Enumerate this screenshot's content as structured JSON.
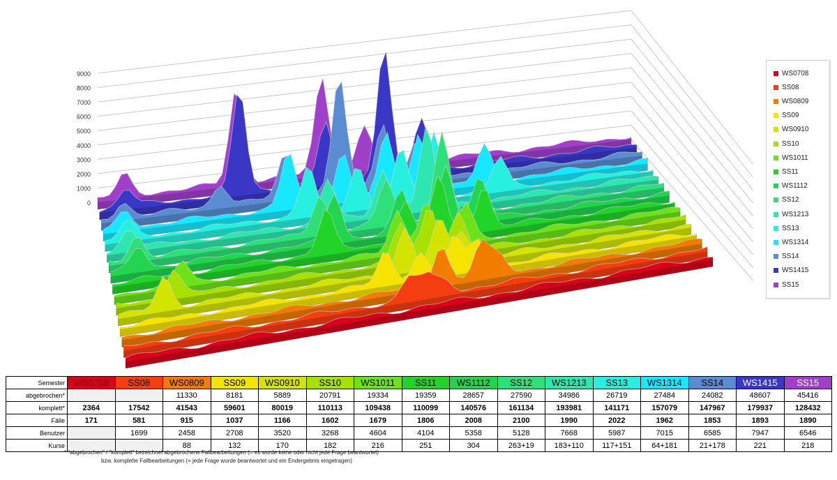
{
  "chart_data": {
    "type": "area",
    "subtype": "3d-stacked-ribbons",
    "y_ticks": [
      "9000",
      "8000",
      "7000",
      "6000",
      "5000",
      "4000",
      "3000",
      "2000",
      "1000",
      "0"
    ],
    "ylim": [
      0,
      9000
    ],
    "grid": true,
    "legend_position": "right",
    "series": [
      {
        "name": "WS0708",
        "color": "#d9001b",
        "peaks": []
      },
      {
        "name": "SS08",
        "color": "#f53d12",
        "peaks": [
          [
            0.49,
            1500
          ],
          [
            0.52,
            1400
          ],
          [
            0.55,
            900
          ]
        ]
      },
      {
        "name": "WS0809",
        "color": "#f07c00",
        "peaks": [
          [
            0.55,
            2700
          ],
          [
            0.62,
            2400
          ],
          [
            0.65,
            1300
          ]
        ]
      },
      {
        "name": "SS09",
        "color": "#f5e400",
        "peaks": [
          [
            0.46,
            2200
          ],
          [
            0.52,
            1800
          ],
          [
            0.58,
            2500
          ],
          [
            0.62,
            2000
          ]
        ]
      },
      {
        "name": "WS0910",
        "color": "#d2e400",
        "peaks": [
          [
            0.08,
            2200
          ],
          [
            0.5,
            2800
          ],
          [
            0.56,
            3200
          ],
          [
            0.6,
            2200
          ]
        ]
      },
      {
        "name": "SS10",
        "color": "#a8e000",
        "peaks": [
          [
            0.1,
            1900
          ],
          [
            0.5,
            2600
          ],
          [
            0.55,
            3500
          ],
          [
            0.6,
            2800
          ]
        ]
      },
      {
        "name": "WS1011",
        "color": "#6de21a",
        "peaks": [
          [
            0.12,
            1600
          ],
          [
            0.5,
            2800
          ],
          [
            0.55,
            3300
          ],
          [
            0.62,
            2600
          ]
        ]
      },
      {
        "name": "SS11",
        "color": "#22d42a",
        "peaks": [
          [
            0.38,
            3000
          ],
          [
            0.52,
            2800
          ],
          [
            0.58,
            4200
          ],
          [
            0.66,
            3000
          ]
        ]
      },
      {
        "name": "WS1112",
        "color": "#22d44e",
        "peaks": [
          [
            0.05,
            1600
          ],
          [
            0.4,
            3400
          ],
          [
            0.52,
            2800
          ],
          [
            0.6,
            4300
          ],
          [
            0.66,
            3000
          ]
        ]
      },
      {
        "name": "SS12",
        "color": "#2ee07a",
        "peaks": [
          [
            0.05,
            1600
          ],
          [
            0.38,
            2700
          ],
          [
            0.5,
            3100
          ],
          [
            0.6,
            5800
          ]
        ]
      },
      {
        "name": "WS1213",
        "color": "#2ee6b0",
        "peaks": [
          [
            0.04,
            1400
          ],
          [
            0.4,
            3000
          ],
          [
            0.5,
            3100
          ],
          [
            0.58,
            5600
          ]
        ]
      },
      {
        "name": "SS13",
        "color": "#28f0e0",
        "peaks": [
          [
            0.04,
            1200
          ],
          [
            0.37,
            3400
          ],
          [
            0.46,
            3000
          ],
          [
            0.54,
            3600
          ],
          [
            0.6,
            4500
          ],
          [
            0.72,
            2200
          ]
        ]
      },
      {
        "name": "WS1314",
        "color": "#18e8ff",
        "peaks": [
          [
            0.04,
            1200
          ],
          [
            0.34,
            3800
          ],
          [
            0.44,
            3300
          ],
          [
            0.52,
            4200
          ],
          [
            0.58,
            3900
          ],
          [
            0.7,
            2500
          ]
        ]
      },
      {
        "name": "SS14",
        "color": "#5b8bd0",
        "peaks": [
          [
            0.04,
            1100
          ],
          [
            0.22,
            1500
          ],
          [
            0.34,
            3000
          ],
          [
            0.44,
            8000
          ],
          [
            0.52,
            4300
          ],
          [
            0.58,
            2800
          ]
        ]
      },
      {
        "name": "WS1415",
        "color": "#3b37c6",
        "peaks": [
          [
            0.05,
            1200
          ],
          [
            0.26,
            7200
          ],
          [
            0.42,
            4100
          ],
          [
            0.53,
            9000
          ],
          [
            0.6,
            3600
          ]
        ]
      },
      {
        "name": "SS15",
        "color": "#a040c8",
        "peaks": [
          [
            0.05,
            1500
          ],
          [
            0.26,
            6600
          ],
          [
            0.42,
            6700
          ],
          [
            0.5,
            3000
          ]
        ]
      }
    ]
  },
  "table": {
    "header_label": "Semester",
    "semesters": [
      "WS0708",
      "SS08",
      "WS0809",
      "SS09",
      "WS0910",
      "SS10",
      "WS1011",
      "SS11",
      "WS1112",
      "SS12",
      "WS1213",
      "SS13",
      "WS1314",
      "SS14",
      "WS1415",
      "SS15"
    ],
    "header_colors": [
      "#d9001b",
      "#f53d12",
      "#f07c00",
      "#f5e400",
      "#d2e400",
      "#a8e000",
      "#6de21a",
      "#22d42a",
      "#22d44e",
      "#2ee07a",
      "#2ee6b0",
      "#28f0e0",
      "#18e8ff",
      "#5b8bd0",
      "#3b37c6",
      "#a040c8"
    ],
    "header_text_colors": [
      "#7a0a0a",
      "#000000",
      "#000000",
      "#000000",
      "#000000",
      "#000000",
      "#000000",
      "#000000",
      "#000000",
      "#000000",
      "#000000",
      "#000000",
      "#000000",
      "#000000",
      "#ffffff",
      "#ffffff"
    ],
    "rows": [
      {
        "label": "abgebrochen*",
        "bold": false,
        "values": [
          "",
          "",
          "11330",
          "8181",
          "5889",
          "20791",
          "19334",
          "19359",
          "28657",
          "27590",
          "34986",
          "26719",
          "27484",
          "24082",
          "48607",
          "45416"
        ]
      },
      {
        "label": "komplett*",
        "bold": true,
        "values": [
          "2364",
          "17542",
          "41543",
          "59601",
          "80019",
          "110113",
          "109438",
          "110099",
          "140576",
          "161134",
          "193981",
          "141171",
          "157079",
          "147967",
          "179937",
          "128432"
        ]
      },
      {
        "label": "Fälle",
        "bold": true,
        "values": [
          "171",
          "581",
          "915",
          "1037",
          "1166",
          "1602",
          "1679",
          "1806",
          "2008",
          "2100",
          "1990",
          "2022",
          "1962",
          "1853",
          "1893",
          "1890"
        ]
      },
      {
        "label": "Benutzer",
        "bold": false,
        "values": [
          "",
          "1699",
          "2458",
          "2708",
          "3520",
          "3268",
          "4604",
          "4104",
          "5358",
          "5128",
          "7668",
          "5987",
          "7015",
          "6585",
          "7947",
          "6546"
        ]
      },
      {
        "label": "Kurse",
        "bold": false,
        "values": [
          "",
          "",
          "88",
          "132",
          "170",
          "182",
          "216",
          "251",
          "304",
          "263+19",
          "183+110",
          "117+151",
          "64+181",
          "21+178",
          "221",
          "218"
        ]
      }
    ]
  },
  "footnote": {
    "line1": "*  \"abgebrochen\" / \"komplett\" bezeichnet abgebrochene Fallbearbeitungen (= es wurde keine oder nicht jede Frage beantwortet)",
    "line2": "bzw. komplette Fallbearbeitungen (= jede Frage wurde beantwortet und ein Endergebnis eingetragen)"
  }
}
